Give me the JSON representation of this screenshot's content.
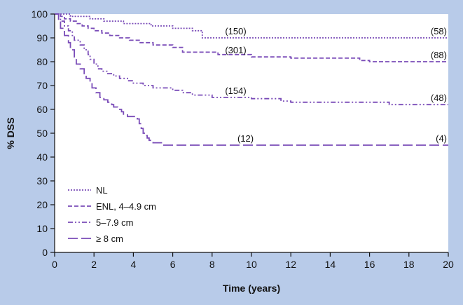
{
  "chart_data": {
    "type": "line",
    "title": "",
    "xlabel": "Time (years)",
    "ylabel": "% DSS",
    "xlim": [
      0,
      20
    ],
    "ylim": [
      0,
      100
    ],
    "xticks": [
      0,
      2,
      4,
      6,
      8,
      10,
      12,
      14,
      16,
      18,
      20
    ],
    "yticks": [
      0,
      10,
      20,
      30,
      40,
      50,
      60,
      70,
      80,
      90,
      100
    ],
    "grid": false,
    "legend_position": "bottom-left",
    "colors": {
      "background": "#b8cbe9",
      "plot_area": "#ffffff",
      "series": "#7a4cb8"
    },
    "series": [
      {
        "name": "NL",
        "dash": "dotted",
        "x": [
          0,
          0.7,
          0.8,
          1.7,
          1.8,
          2.3,
          2.5,
          3.2,
          3.5,
          4.5,
          4.9,
          5.6,
          6.0,
          6.8,
          7.0,
          7.3,
          7.5,
          20
        ],
        "y": [
          100,
          100,
          99,
          99,
          98,
          98,
          97,
          97,
          96,
          96,
          95,
          95,
          94,
          94,
          93,
          93,
          90,
          90
        ]
      },
      {
        "name": "ENL, 4–4.9 cm",
        "dash": "dashed",
        "x": [
          0,
          0.3,
          0.5,
          0.8,
          1.1,
          1.4,
          1.7,
          2.0,
          2.4,
          2.8,
          3.3,
          3.8,
          4.3,
          5.0,
          6.0,
          6.5,
          7.5,
          8.3,
          9.0,
          10.0,
          11.0,
          12.0,
          15.0,
          15.5,
          16.0,
          20
        ],
        "y": [
          100,
          99,
          98,
          97,
          96,
          95,
          94,
          93,
          92,
          91,
          90,
          89,
          88,
          87,
          86,
          84,
          84,
          83,
          83,
          82,
          82,
          81.5,
          81.5,
          80.5,
          80,
          80
        ]
      },
      {
        "name": "5–7.9 cm",
        "dash": "dashdotdot",
        "x": [
          0,
          0.3,
          0.5,
          0.7,
          0.9,
          1.0,
          1.3,
          1.5,
          1.7,
          1.8,
          2.0,
          2.2,
          2.4,
          2.7,
          3.0,
          3.3,
          3.7,
          4.0,
          4.5,
          5.0,
          6.0,
          6.5,
          7.0,
          8.0,
          10.0,
          11.5,
          12.0,
          16.5,
          17.0,
          20
        ],
        "y": [
          100,
          97,
          95,
          93,
          91,
          89,
          87,
          85,
          83,
          81,
          79,
          77,
          76,
          75,
          74,
          73,
          72,
          71,
          70,
          69,
          68,
          67,
          66,
          65,
          64.5,
          63.5,
          63,
          63,
          62,
          62
        ]
      },
      {
        "name": "≥ 8 cm",
        "dash": "longdash",
        "x": [
          0,
          0.2,
          0.3,
          0.5,
          0.7,
          0.8,
          1.0,
          1.1,
          1.3,
          1.5,
          1.6,
          1.8,
          1.9,
          2.1,
          2.3,
          2.5,
          2.7,
          2.9,
          3.0,
          3.2,
          3.4,
          3.5,
          3.7,
          4.0,
          4.2,
          4.3,
          4.4,
          4.5,
          4.6,
          4.7,
          4.8,
          5.0,
          5.5,
          20
        ],
        "y": [
          100,
          97,
          94,
          91,
          88,
          85,
          82,
          79,
          77,
          75,
          73,
          71,
          69,
          67,
          65,
          64,
          63,
          62,
          61,
          60,
          59,
          58,
          57,
          57,
          56,
          54,
          52,
          50,
          49,
          48,
          47,
          46,
          45,
          45
        ]
      }
    ],
    "annotations": [
      {
        "text": "(150)",
        "x": 9.2,
        "y": 90
      },
      {
        "text": "(58)",
        "x": 20,
        "y": 90
      },
      {
        "text": "(301)",
        "x": 9.2,
        "y": 82
      },
      {
        "text": "(88)",
        "x": 20,
        "y": 80
      },
      {
        "text": "(154)",
        "x": 9.2,
        "y": 65
      },
      {
        "text": "(48)",
        "x": 20,
        "y": 62
      },
      {
        "text": "(12)",
        "x": 9.7,
        "y": 45
      },
      {
        "text": "(4)",
        "x": 20,
        "y": 45
      }
    ]
  }
}
